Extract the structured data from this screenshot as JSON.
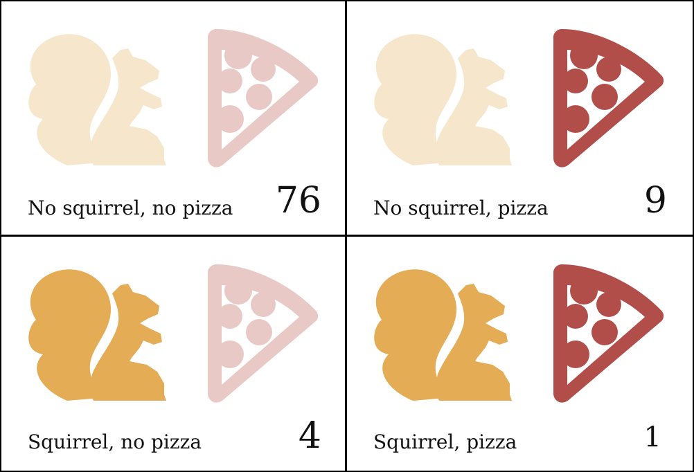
{
  "colors": {
    "squirrel_on": "#E4AC55",
    "squirrel_off": "#F6E6CC",
    "pizza_on": "#B14E4A",
    "pizza_off": "#E9C9C6"
  },
  "cells": [
    {
      "label": "No squirrel, no pizza",
      "count": "76",
      "squirrel": false,
      "pizza": false,
      "squirrel_icon": "squirrel-icon",
      "pizza_icon": "pizza-slice-icon"
    },
    {
      "label": "No squirrel, pizza",
      "count": "9",
      "squirrel": false,
      "pizza": true,
      "squirrel_icon": "squirrel-icon",
      "pizza_icon": "pizza-slice-icon"
    },
    {
      "label": "Squirrel, no pizza",
      "count": "4",
      "squirrel": true,
      "pizza": false,
      "squirrel_icon": "squirrel-icon",
      "pizza_icon": "pizza-slice-icon"
    },
    {
      "label": "Squirrel, pizza",
      "count": "1",
      "squirrel": true,
      "pizza": true,
      "squirrel_icon": "squirrel-icon",
      "pizza_icon": "pizza-slice-icon"
    }
  ]
}
